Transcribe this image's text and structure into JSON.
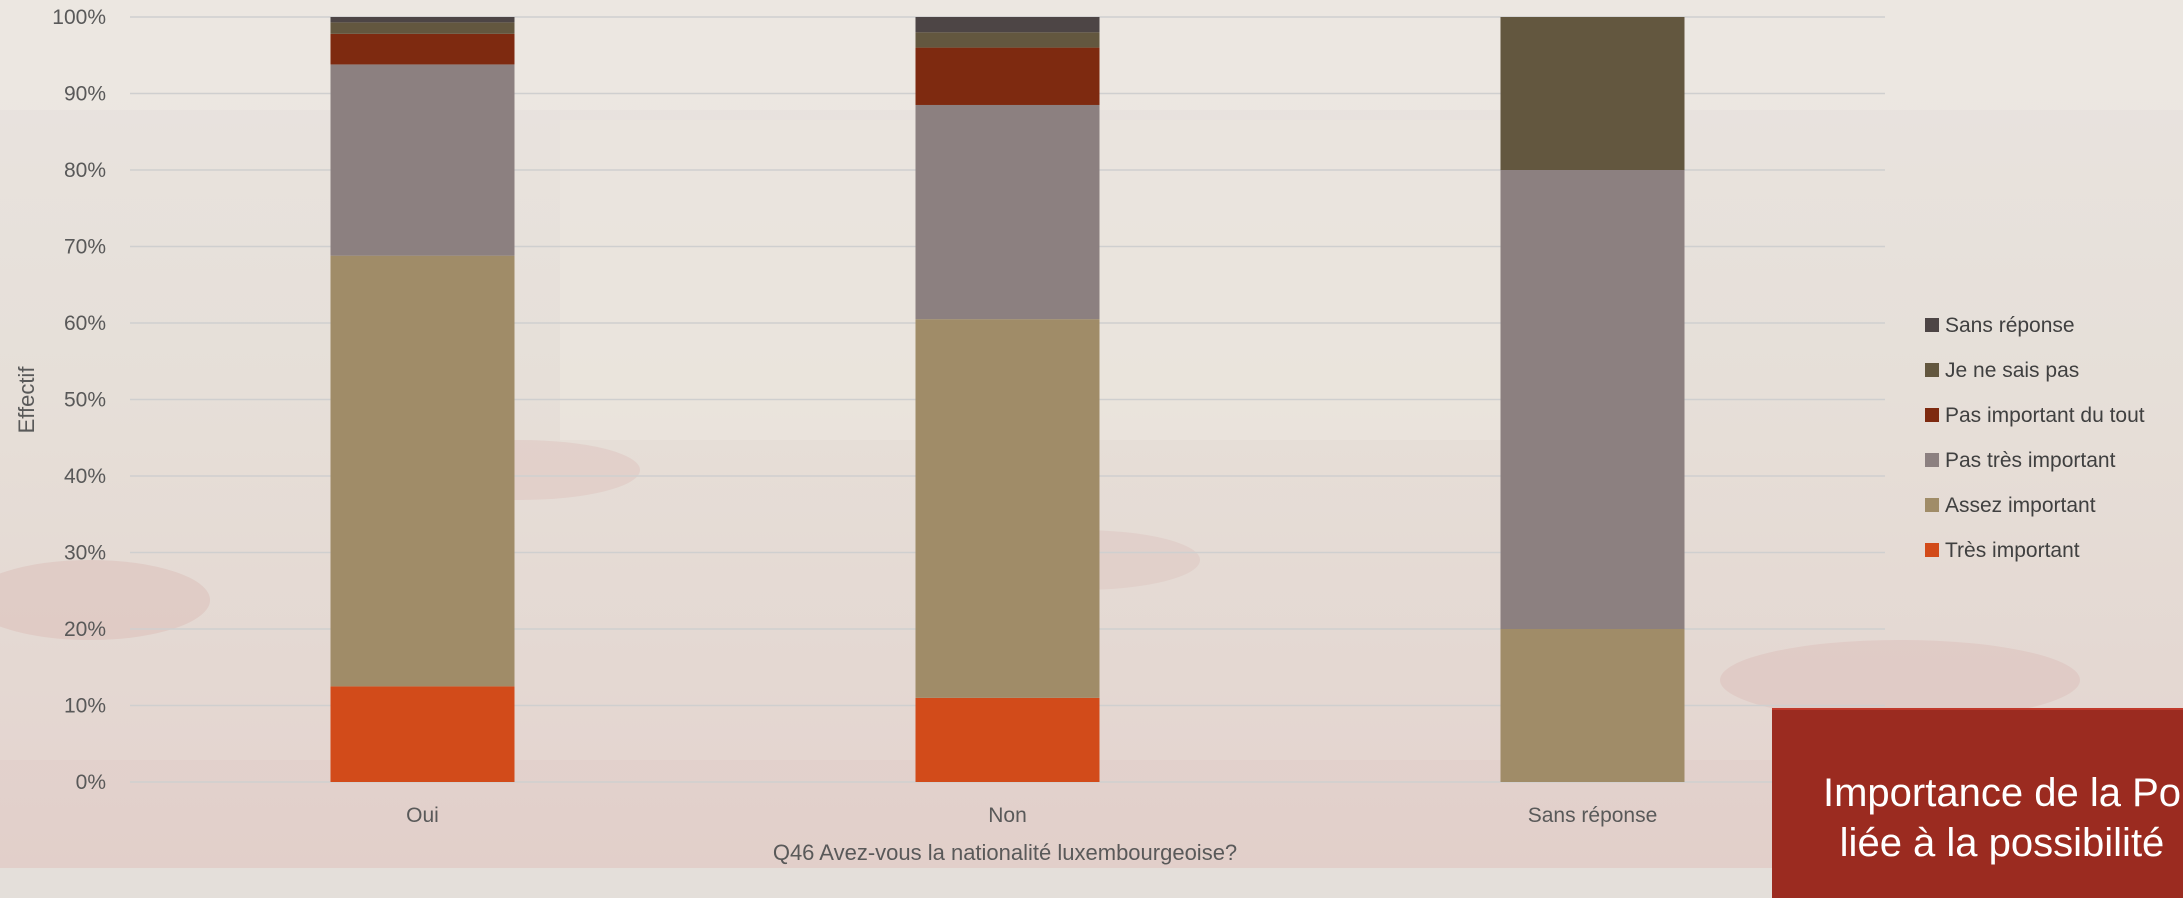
{
  "chart_data": {
    "type": "bar",
    "stacked": true,
    "percent": true,
    "categories": [
      "Oui",
      "Non",
      "Sans réponse"
    ],
    "xlabel": "Q46 Avez-vous la nationalité luxembourgeoise?",
    "ylabel": "Effectif",
    "ylim": [
      0,
      100
    ],
    "yticks": [
      "0%",
      "10%",
      "20%",
      "30%",
      "40%",
      "50%",
      "60%",
      "70%",
      "80%",
      "90%",
      "100%"
    ],
    "grid": true,
    "legend_position": "right",
    "series": [
      {
        "name": "Très important",
        "color": "#d24b1a",
        "values": [
          12.5,
          11,
          0
        ]
      },
      {
        "name": "Assez important",
        "color": "#a08c68",
        "values": [
          56.3,
          49.5,
          20
        ]
      },
      {
        "name": "Pas très important",
        "color": "#8c8080",
        "values": [
          25,
          28,
          60
        ]
      },
      {
        "name": "Pas important du tout",
        "color": "#7e2a10",
        "values": [
          4,
          7.5,
          0
        ]
      },
      {
        "name": "Je ne sais pas",
        "color": "#63573f",
        "values": [
          1.5,
          2,
          20
        ]
      },
      {
        "name": "Sans réponse",
        "color": "#4d4545",
        "values": [
          0.7,
          2,
          0
        ]
      }
    ]
  },
  "title_box": {
    "line1": "Importance de la Po",
    "line2": "liée à la possibilité"
  }
}
